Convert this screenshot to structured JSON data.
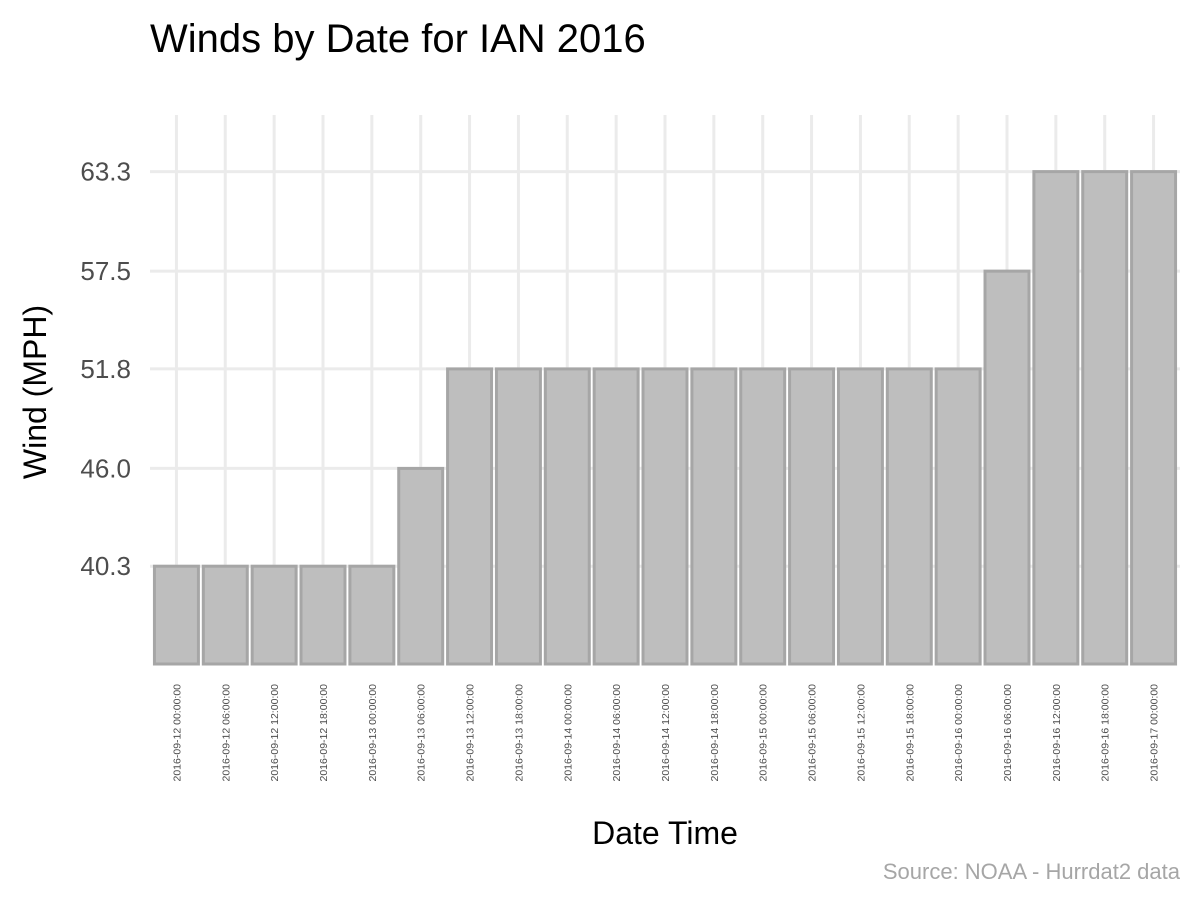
{
  "chart_data": {
    "type": "bar",
    "title": "Winds by Date for IAN 2016",
    "xlabel": "Date Time",
    "ylabel": "Wind (MPH)",
    "caption": "Source: NOAA - Hurrdat2 data",
    "categories": [
      "2016-09-12 00:00:00",
      "2016-09-12 06:00:00",
      "2016-09-12 12:00:00",
      "2016-09-12 18:00:00",
      "2016-09-13 00:00:00",
      "2016-09-13 06:00:00",
      "2016-09-13 12:00:00",
      "2016-09-13 18:00:00",
      "2016-09-14 00:00:00",
      "2016-09-14 06:00:00",
      "2016-09-14 12:00:00",
      "2016-09-14 18:00:00",
      "2016-09-15 00:00:00",
      "2016-09-15 06:00:00",
      "2016-09-15 12:00:00",
      "2016-09-15 18:00:00",
      "2016-09-16 00:00:00",
      "2016-09-16 06:00:00",
      "2016-09-16 12:00:00",
      "2016-09-16 18:00:00",
      "2016-09-17 00:00:00"
    ],
    "values": [
      40.3,
      40.3,
      40.3,
      40.3,
      40.3,
      46.0,
      51.8,
      51.8,
      51.8,
      51.8,
      51.8,
      51.8,
      51.8,
      51.8,
      51.8,
      51.8,
      51.8,
      57.5,
      63.3,
      63.3,
      63.3
    ],
    "yticks": [
      "40.3",
      "46.0",
      "51.8",
      "57.5",
      "63.3"
    ],
    "ylim": [
      34.6,
      66.6
    ],
    "grid": true,
    "colors": {
      "bar_fill": "#bebebe",
      "bar_stroke": "#a6a6a6",
      "grid": "#ebebeb",
      "tick_text": "#4d4d4d",
      "caption": "#a6a6a6",
      "title": "#000000"
    }
  }
}
